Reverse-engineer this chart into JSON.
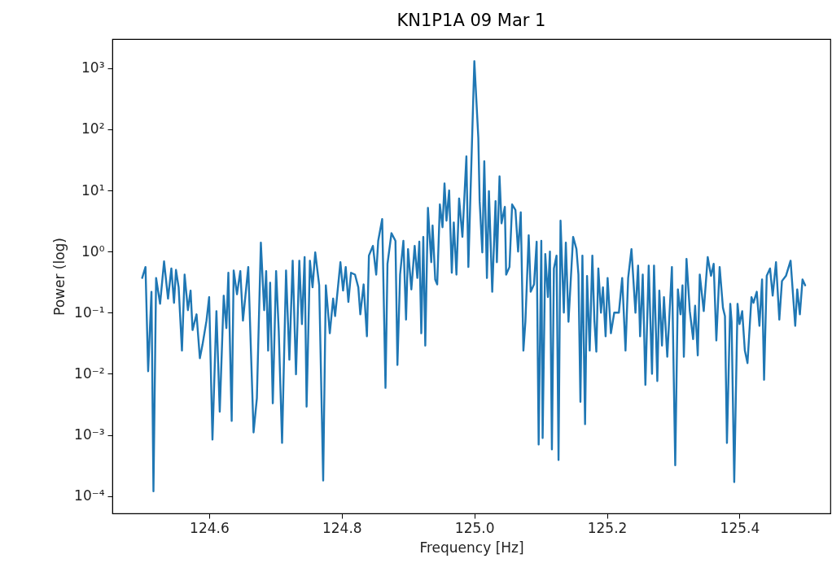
{
  "chart_data": {
    "type": "line",
    "title": "KN1P1A 09 Mar 1",
    "xlabel": "Frequency [Hz]",
    "ylabel": "Power (log)",
    "log": true,
    "grid": false,
    "xlim": [
      124.454,
      125.537
    ],
    "ylim": [
      5.2e-05,
      3000
    ],
    "xticks": [
      124.6,
      124.8,
      {
        "value": 125,
        "label": "125.0"
      },
      125.2,
      125.4
    ],
    "yticks": [
      {
        "value": 0.0001,
        "label": "10⁻⁴"
      },
      {
        "value": 0.001,
        "label": "10⁻³"
      },
      {
        "value": 0.01,
        "label": "10⁻²"
      },
      {
        "value": 0.1,
        "label": "10⁻¹"
      },
      {
        "value": 1,
        "label": "10⁰"
      },
      {
        "value": 10,
        "label": "10¹"
      },
      {
        "value": 100,
        "label": "10²"
      },
      {
        "value": 1000,
        "label": "10³"
      }
    ],
    "series": [
      {
        "color": "#1f77b4",
        "x": [
          124.499,
          124.504,
          124.508,
          124.513,
          124.516,
          124.52,
          124.526,
          124.532,
          124.538,
          124.543,
          124.547,
          124.55,
          124.554,
          124.559,
          124.563,
          124.568,
          124.572,
          124.575,
          124.581,
          124.586,
          124.59,
          124.596,
          124.6,
          124.605,
          124.611,
          124.616,
          124.622,
          124.626,
          124.629,
          124.634,
          124.637,
          124.642,
          124.647,
          124.651,
          124.659,
          124.667,
          124.672,
          124.678,
          124.683,
          124.686,
          124.689,
          124.692,
          124.696,
          124.701,
          124.705,
          124.71,
          124.716,
          124.721,
          124.726,
          124.731,
          124.736,
          124.74,
          124.744,
          124.747,
          124.752,
          124.756,
          124.76,
          124.766,
          124.772,
          124.776,
          124.782,
          124.787,
          124.79,
          124.798,
          124.802,
          124.806,
          124.81,
          124.814,
          124.82,
          124.825,
          124.828,
          124.833,
          124.838,
          124.841,
          124.847,
          124.852,
          124.855,
          124.861,
          124.866,
          124.869,
          124.875,
          124.881,
          124.884,
          124.888,
          124.893,
          124.897,
          124.9,
          124.905,
          124.91,
          124.914,
          124.917,
          124.92,
          124.923,
          124.926,
          124.93,
          124.935,
          124.937,
          124.941,
          124.944,
          124.948,
          124.952,
          124.955,
          124.958,
          124.962,
          124.966,
          124.969,
          124.973,
          124.977,
          124.982,
          124.988,
          124.991,
          125.0,
          125.006,
          125.008,
          125.012,
          125.015,
          125.019,
          125.022,
          125.027,
          125.032,
          125.034,
          125.038,
          125.041,
          125.046,
          125.048,
          125.053,
          125.057,
          125.062,
          125.066,
          125.07,
          125.074,
          125.077,
          125.082,
          125.085,
          125.09,
          125.094,
          125.097,
          125.101,
          125.103,
          125.107,
          125.111,
          125.114,
          125.117,
          125.12,
          125.124,
          125.127,
          125.13,
          125.135,
          125.138,
          125.142,
          125.145,
          125.149,
          125.154,
          125.157,
          125.16,
          125.163,
          125.167,
          125.17,
          125.174,
          125.178,
          125.181,
          125.184,
          125.187,
          125.191,
          125.194,
          125.198,
          125.201,
          125.206,
          125.211,
          125.218,
          125.223,
          125.228,
          125.232,
          125.237,
          125.243,
          125.247,
          125.25,
          125.254,
          125.258,
          125.263,
          125.268,
          125.271,
          125.276,
          125.279,
          125.283,
          125.286,
          125.291,
          125.298,
          125.303,
          125.307,
          125.311,
          125.314,
          125.316,
          125.32,
          125.325,
          125.33,
          125.333,
          125.337,
          125.34,
          125.346,
          125.352,
          125.357,
          125.361,
          125.365,
          125.37,
          125.375,
          125.378,
          125.381,
          125.386,
          125.388,
          125.392,
          125.397,
          125.4,
          125.404,
          125.408,
          125.412,
          125.418,
          125.421,
          125.426,
          125.43,
          125.434,
          125.437,
          125.441,
          125.446,
          125.45,
          125.455,
          125.46,
          125.464,
          125.47,
          125.477,
          125.484,
          125.487,
          125.491,
          125.495,
          125.499
        ],
        "values": [
          0.37,
          0.56,
          0.011,
          0.22,
          0.00012,
          0.37,
          0.14,
          0.69,
          0.17,
          0.53,
          0.145,
          0.5,
          0.26,
          0.024,
          0.42,
          0.11,
          0.23,
          0.052,
          0.094,
          0.018,
          0.03,
          0.074,
          0.18,
          0.00084,
          0.106,
          0.0024,
          0.19,
          0.056,
          0.45,
          0.0017,
          0.49,
          0.2,
          0.48,
          0.074,
          0.56,
          0.0011,
          0.004,
          1.4,
          0.11,
          0.48,
          0.024,
          0.31,
          0.0033,
          0.48,
          0.05,
          0.00074,
          0.49,
          0.017,
          0.71,
          0.0098,
          0.71,
          0.065,
          0.81,
          0.0029,
          0.71,
          0.26,
          0.97,
          0.28,
          0.00018,
          0.28,
          0.046,
          0.17,
          0.088,
          0.67,
          0.23,
          0.56,
          0.15,
          0.45,
          0.42,
          0.26,
          0.094,
          0.29,
          0.041,
          0.86,
          1.24,
          0.42,
          1.5,
          3.4,
          0.0059,
          0.63,
          2.0,
          1.5,
          0.014,
          0.42,
          1.5,
          0.077,
          1.1,
          0.24,
          1.24,
          0.37,
          1.45,
          0.046,
          1.74,
          0.029,
          5.2,
          0.67,
          2.67,
          0.35,
          0.29,
          5.9,
          2.5,
          13,
          3.2,
          10,
          0.45,
          3.0,
          0.42,
          7.4,
          1.74,
          36,
          0.56,
          1300,
          73,
          6.7,
          0.97,
          30,
          0.37,
          9.7,
          0.22,
          6.7,
          0.67,
          17,
          2.9,
          5.4,
          0.42,
          0.56,
          5.9,
          4.8,
          1.0,
          4.4,
          0.024,
          0.071,
          1.85,
          0.22,
          0.29,
          1.45,
          0.0007,
          1.5,
          0.00089,
          0.91,
          0.18,
          1.0,
          0.00058,
          0.53,
          0.86,
          0.00039,
          3.2,
          0.1,
          1.4,
          0.071,
          0.28,
          1.74,
          1.1,
          0.42,
          0.0035,
          0.86,
          0.0015,
          0.4,
          0.024,
          0.86,
          0.077,
          0.023,
          0.53,
          0.1,
          0.26,
          0.041,
          0.37,
          0.046,
          0.1,
          0.1,
          0.37,
          0.024,
          0.37,
          1.1,
          0.1,
          0.59,
          0.041,
          0.42,
          0.0066,
          0.59,
          0.01,
          0.59,
          0.0076,
          0.23,
          0.029,
          0.18,
          0.019,
          0.56,
          0.00032,
          0.24,
          0.094,
          0.28,
          0.019,
          0.76,
          0.106,
          0.037,
          0.13,
          0.02,
          0.42,
          0.106,
          0.81,
          0.4,
          0.63,
          0.035,
          0.56,
          0.12,
          0.088,
          0.00074,
          0.14,
          0.071,
          0.00017,
          0.14,
          0.065,
          0.106,
          0.024,
          0.015,
          0.18,
          0.145,
          0.22,
          0.061,
          0.35,
          0.008,
          0.4,
          0.53,
          0.19,
          0.67,
          0.077,
          0.33,
          0.4,
          0.71,
          0.061,
          0.24,
          0.094,
          0.35,
          0.28
        ]
      }
    ]
  }
}
